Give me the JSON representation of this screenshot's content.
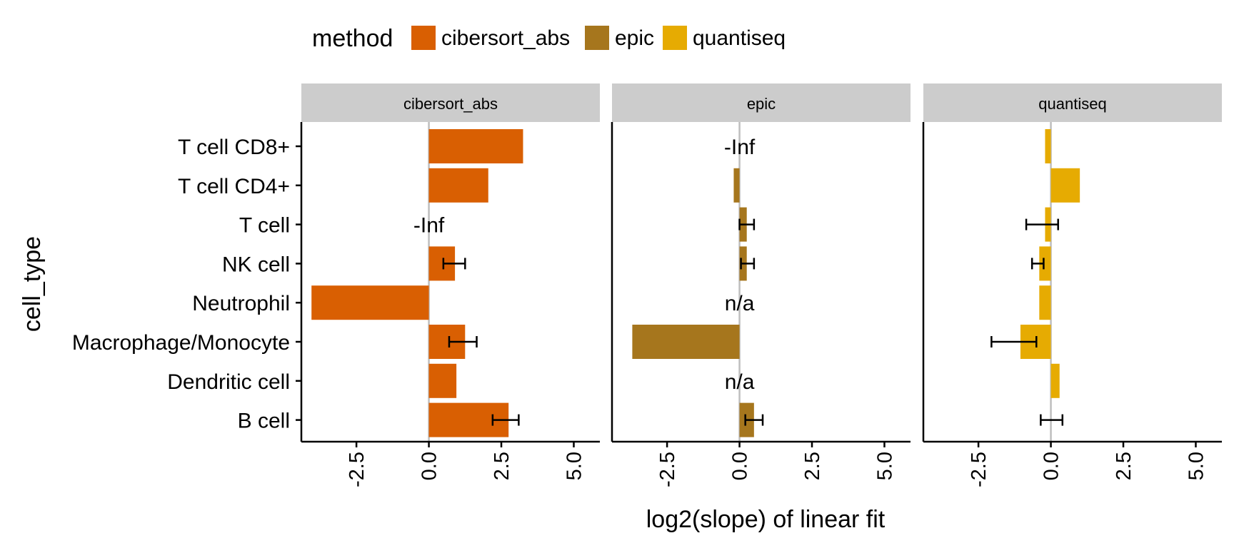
{
  "chart_data": {
    "type": "bar",
    "legend": {
      "title": "method",
      "position": "top",
      "items": [
        {
          "label": "cibersort_abs",
          "color": "#D95F02"
        },
        {
          "label": "epic",
          "color": "#A6761D"
        },
        {
          "label": "quantiseq",
          "color": "#E6AB02"
        }
      ]
    },
    "xlabel": "log2(slope) of linear fit",
    "ylabel": "cell_type",
    "categories": [
      "T cell CD8+",
      "T cell CD4+",
      "T cell",
      "NK cell",
      "Neutrophil",
      "Macrophage/Monocyte",
      "Dendritic cell",
      "B cell"
    ],
    "xlim": [
      -4.4,
      5.9
    ],
    "xticks": [
      "-2.5",
      "0.0",
      "2.5",
      "5.0"
    ],
    "xtick_values": [
      -2.5,
      0.0,
      2.5,
      5.0
    ],
    "grid": false,
    "orientation": "horizontal",
    "panels": [
      {
        "name": "cibersort_abs",
        "color": "#D95F02",
        "values": [
          3.25,
          2.05,
          null,
          0.9,
          -4.05,
          1.25,
          0.95,
          2.75
        ],
        "error": [
          null,
          null,
          null,
          [
            0.5,
            1.25
          ],
          null,
          [
            0.7,
            1.65
          ],
          null,
          [
            2.2,
            3.1
          ]
        ],
        "labels": [
          "",
          "",
          "-Inf",
          "",
          "",
          "",
          "",
          ""
        ]
      },
      {
        "name": "epic",
        "color": "#A6761D",
        "values": [
          null,
          -0.2,
          0.25,
          0.25,
          null,
          -3.7,
          null,
          0.5
        ],
        "error": [
          null,
          null,
          [
            0.0,
            0.5
          ],
          [
            0.05,
            0.5
          ],
          null,
          null,
          null,
          [
            0.2,
            0.8
          ]
        ],
        "labels": [
          "-Inf",
          "",
          "",
          "",
          "n/a",
          "",
          "n/a",
          ""
        ]
      },
      {
        "name": "quantiseq",
        "color": "#E6AB02",
        "values": [
          -0.2,
          1.0,
          -0.2,
          -0.4,
          -0.4,
          -1.05,
          0.3,
          0.0
        ],
        "error": [
          null,
          null,
          [
            -0.85,
            0.25
          ],
          [
            -0.65,
            -0.25
          ],
          null,
          [
            -2.05,
            -0.5
          ],
          null,
          [
            -0.35,
            0.4
          ]
        ],
        "labels": [
          "",
          "",
          "",
          "",
          "",
          "",
          "",
          ""
        ]
      }
    ]
  }
}
